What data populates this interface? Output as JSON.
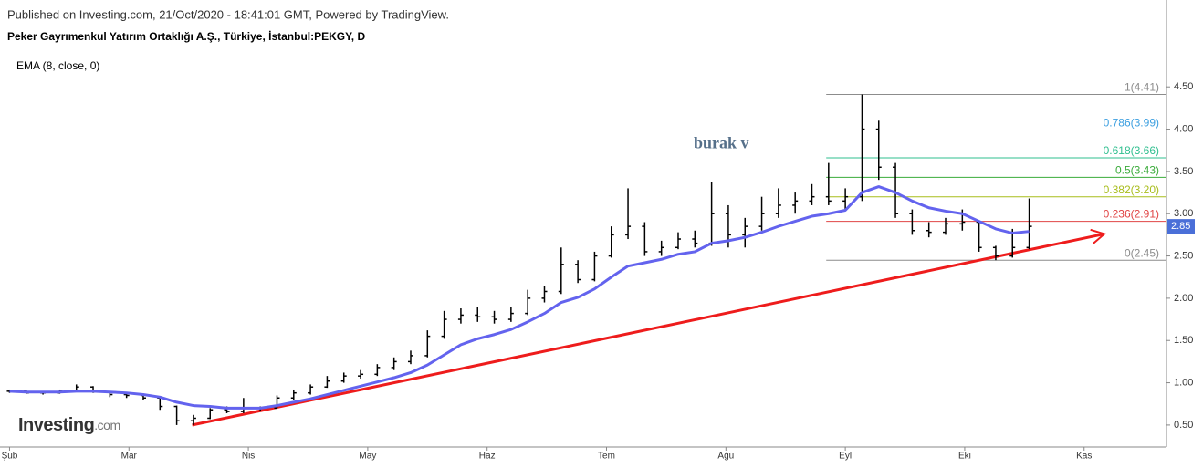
{
  "chart_data": {
    "type": "ohlc",
    "header": "Published on Investing.com, 21/Oct/2020 - 18:41:01 GMT, Powered by TradingView.",
    "title": "Peker Gayrımenkul Yatırım Ortaklığı A.Ş., Türkiye, İstanbul:PEKGY, D",
    "logo": [
      "Investing",
      ".com"
    ],
    "color": "#000000",
    "x": [
      2.0,
      2.14,
      2.28,
      2.42,
      2.56,
      2.7,
      2.84,
      2.98,
      3.12,
      3.26,
      3.4,
      3.54,
      3.68,
      3.82,
      3.96,
      4.1,
      4.24,
      4.38,
      4.52,
      4.66,
      4.8,
      4.94,
      5.08,
      5.22,
      5.36,
      5.5,
      5.64,
      5.78,
      5.92,
      6.06,
      6.2,
      6.34,
      6.48,
      6.62,
      6.76,
      6.9,
      7.04,
      7.18,
      7.32,
      7.46,
      7.6,
      7.74,
      7.88,
      8.02,
      8.16,
      8.3,
      8.44,
      8.58,
      8.72,
      8.86,
      9.0,
      9.14,
      9.28,
      9.42,
      9.56,
      9.7,
      9.84,
      9.98,
      10.12,
      10.26,
      10.4,
      10.54
    ],
    "open": [
      0.9,
      0.9,
      0.88,
      0.88,
      0.9,
      0.95,
      0.89,
      0.86,
      0.85,
      0.82,
      0.72,
      0.55,
      0.58,
      0.68,
      0.66,
      0.7,
      0.7,
      0.82,
      0.88,
      0.95,
      1.02,
      1.08,
      1.1,
      1.18,
      1.25,
      1.32,
      1.55,
      1.75,
      1.8,
      1.78,
      1.75,
      1.82,
      2.0,
      2.08,
      2.4,
      2.22,
      2.5,
      2.75,
      2.85,
      2.55,
      2.6,
      2.7,
      2.65,
      3.0,
      2.75,
      2.85,
      3.0,
      3.1,
      3.15,
      3.2,
      3.15,
      3.2,
      4.0,
      3.55,
      3.0,
      2.8,
      2.78,
      2.88,
      2.9,
      2.6,
      2.5,
      2.6
    ],
    "high": [
      0.92,
      0.91,
      0.9,
      0.92,
      0.98,
      0.96,
      0.9,
      0.88,
      0.86,
      0.83,
      0.73,
      0.62,
      0.7,
      0.72,
      0.82,
      0.72,
      0.85,
      0.92,
      0.98,
      1.08,
      1.12,
      1.15,
      1.22,
      1.3,
      1.38,
      1.62,
      1.85,
      1.88,
      1.9,
      1.85,
      1.9,
      2.1,
      2.15,
      2.6,
      2.45,
      2.55,
      2.85,
      3.3,
      2.9,
      2.68,
      2.78,
      2.8,
      3.38,
      3.1,
      2.95,
      3.2,
      3.3,
      3.25,
      3.35,
      3.6,
      3.3,
      4.41,
      4.1,
      3.6,
      3.05,
      2.9,
      2.95,
      3.05,
      2.92,
      2.62,
      2.82,
      3.18
    ],
    "low": [
      0.88,
      0.87,
      0.86,
      0.87,
      0.89,
      0.88,
      0.83,
      0.82,
      0.8,
      0.68,
      0.5,
      0.5,
      0.57,
      0.64,
      0.64,
      0.66,
      0.7,
      0.8,
      0.86,
      0.94,
      1.0,
      1.05,
      1.08,
      1.15,
      1.22,
      1.3,
      1.52,
      1.7,
      1.72,
      1.7,
      1.72,
      1.8,
      1.95,
      2.05,
      2.18,
      2.2,
      2.48,
      2.7,
      2.5,
      2.5,
      2.58,
      2.6,
      2.62,
      2.6,
      2.6,
      2.8,
      2.95,
      3.0,
      3.1,
      3.1,
      3.05,
      3.15,
      3.4,
      2.95,
      2.75,
      2.72,
      2.75,
      2.8,
      2.55,
      2.45,
      2.48,
      2.58
    ],
    "close": [
      0.9,
      0.88,
      0.88,
      0.9,
      0.95,
      0.89,
      0.86,
      0.85,
      0.82,
      0.72,
      0.55,
      0.58,
      0.68,
      0.66,
      0.7,
      0.7,
      0.82,
      0.88,
      0.95,
      1.02,
      1.08,
      1.1,
      1.18,
      1.25,
      1.32,
      1.55,
      1.75,
      1.8,
      1.78,
      1.75,
      1.82,
      2.0,
      2.08,
      2.4,
      2.22,
      2.5,
      2.75,
      2.85,
      2.55,
      2.6,
      2.7,
      2.65,
      3.0,
      2.75,
      2.85,
      3.0,
      3.1,
      3.15,
      3.2,
      3.15,
      3.2,
      4.0,
      3.55,
      3.0,
      2.8,
      2.78,
      2.88,
      2.9,
      2.6,
      2.5,
      2.6,
      2.85
    ],
    "ema": {
      "name": "EMA (8, close, 0)",
      "color": "#6363ee",
      "values": [
        0.9,
        0.89,
        0.89,
        0.89,
        0.9,
        0.9,
        0.89,
        0.88,
        0.86,
        0.83,
        0.77,
        0.73,
        0.72,
        0.7,
        0.7,
        0.7,
        0.73,
        0.77,
        0.81,
        0.86,
        0.91,
        0.96,
        1.01,
        1.06,
        1.12,
        1.21,
        1.33,
        1.45,
        1.52,
        1.57,
        1.63,
        1.72,
        1.82,
        1.95,
        2.01,
        2.11,
        2.25,
        2.38,
        2.42,
        2.46,
        2.52,
        2.55,
        2.65,
        2.68,
        2.72,
        2.78,
        2.85,
        2.91,
        2.97,
        3.0,
        3.04,
        3.25,
        3.32,
        3.25,
        3.15,
        3.07,
        3.03,
        3.0,
        2.91,
        2.82,
        2.77,
        2.79
      ]
    },
    "last_price": {
      "value": 2.85,
      "label": "2.85",
      "color": "#4a6fd8"
    },
    "fib_start_x": 8.84,
    "fib_levels": [
      {
        "label": "1(4.41)",
        "value": 4.41,
        "color": "#8c8c8c"
      },
      {
        "label": "0.786(3.99)",
        "value": 3.99,
        "color": "#3c9fe0"
      },
      {
        "label": "0.618(3.66)",
        "value": 3.66,
        "color": "#2fbf8f"
      },
      {
        "label": "0.5(3.43)",
        "value": 3.43,
        "color": "#3aab3a"
      },
      {
        "label": "0.382(3.20)",
        "value": 3.2,
        "color": "#a8bd1c"
      },
      {
        "label": "0.236(2.91)",
        "value": 2.91,
        "color": "#e04444"
      },
      {
        "label": "0(2.45)",
        "value": 2.45,
        "color": "#8c8c8c"
      }
    ],
    "trend_line": {
      "x": [
        3.53,
        11.17
      ],
      "y": [
        0.5,
        2.76
      ],
      "color": "#ee1c1c"
    },
    "annotation": {
      "text": "burak v",
      "x": 7.73,
      "y": 3.82
    },
    "xlim": [
      1.92,
      11.69
    ],
    "xticks": [
      {
        "value": 2,
        "label": "Şub"
      },
      {
        "value": 3,
        "label": "Mar"
      },
      {
        "value": 4,
        "label": "Nis"
      },
      {
        "value": 5,
        "label": "May"
      },
      {
        "value": 6,
        "label": "Haz"
      },
      {
        "value": 7,
        "label": "Tem"
      },
      {
        "value": 8,
        "label": "Ağu"
      },
      {
        "value": 9,
        "label": "Eyl"
      },
      {
        "value": 10,
        "label": "Eki"
      },
      {
        "value": 11,
        "label": "Kas"
      }
    ],
    "ylim": [
      0.24,
      4.88
    ],
    "yticks": [
      {
        "value": 0.5,
        "label": "0.50"
      },
      {
        "value": 1,
        "label": "1.00"
      },
      {
        "value": 1.5,
        "label": "1.50"
      },
      {
        "value": 2,
        "label": "2.00"
      },
      {
        "value": 2.5,
        "label": "2.50"
      },
      {
        "value": 3,
        "label": "3.00"
      },
      {
        "value": 3.5,
        "label": "3.50"
      },
      {
        "value": 4,
        "label": "4.00"
      },
      {
        "value": 4.5,
        "label": "4.50"
      }
    ]
  }
}
